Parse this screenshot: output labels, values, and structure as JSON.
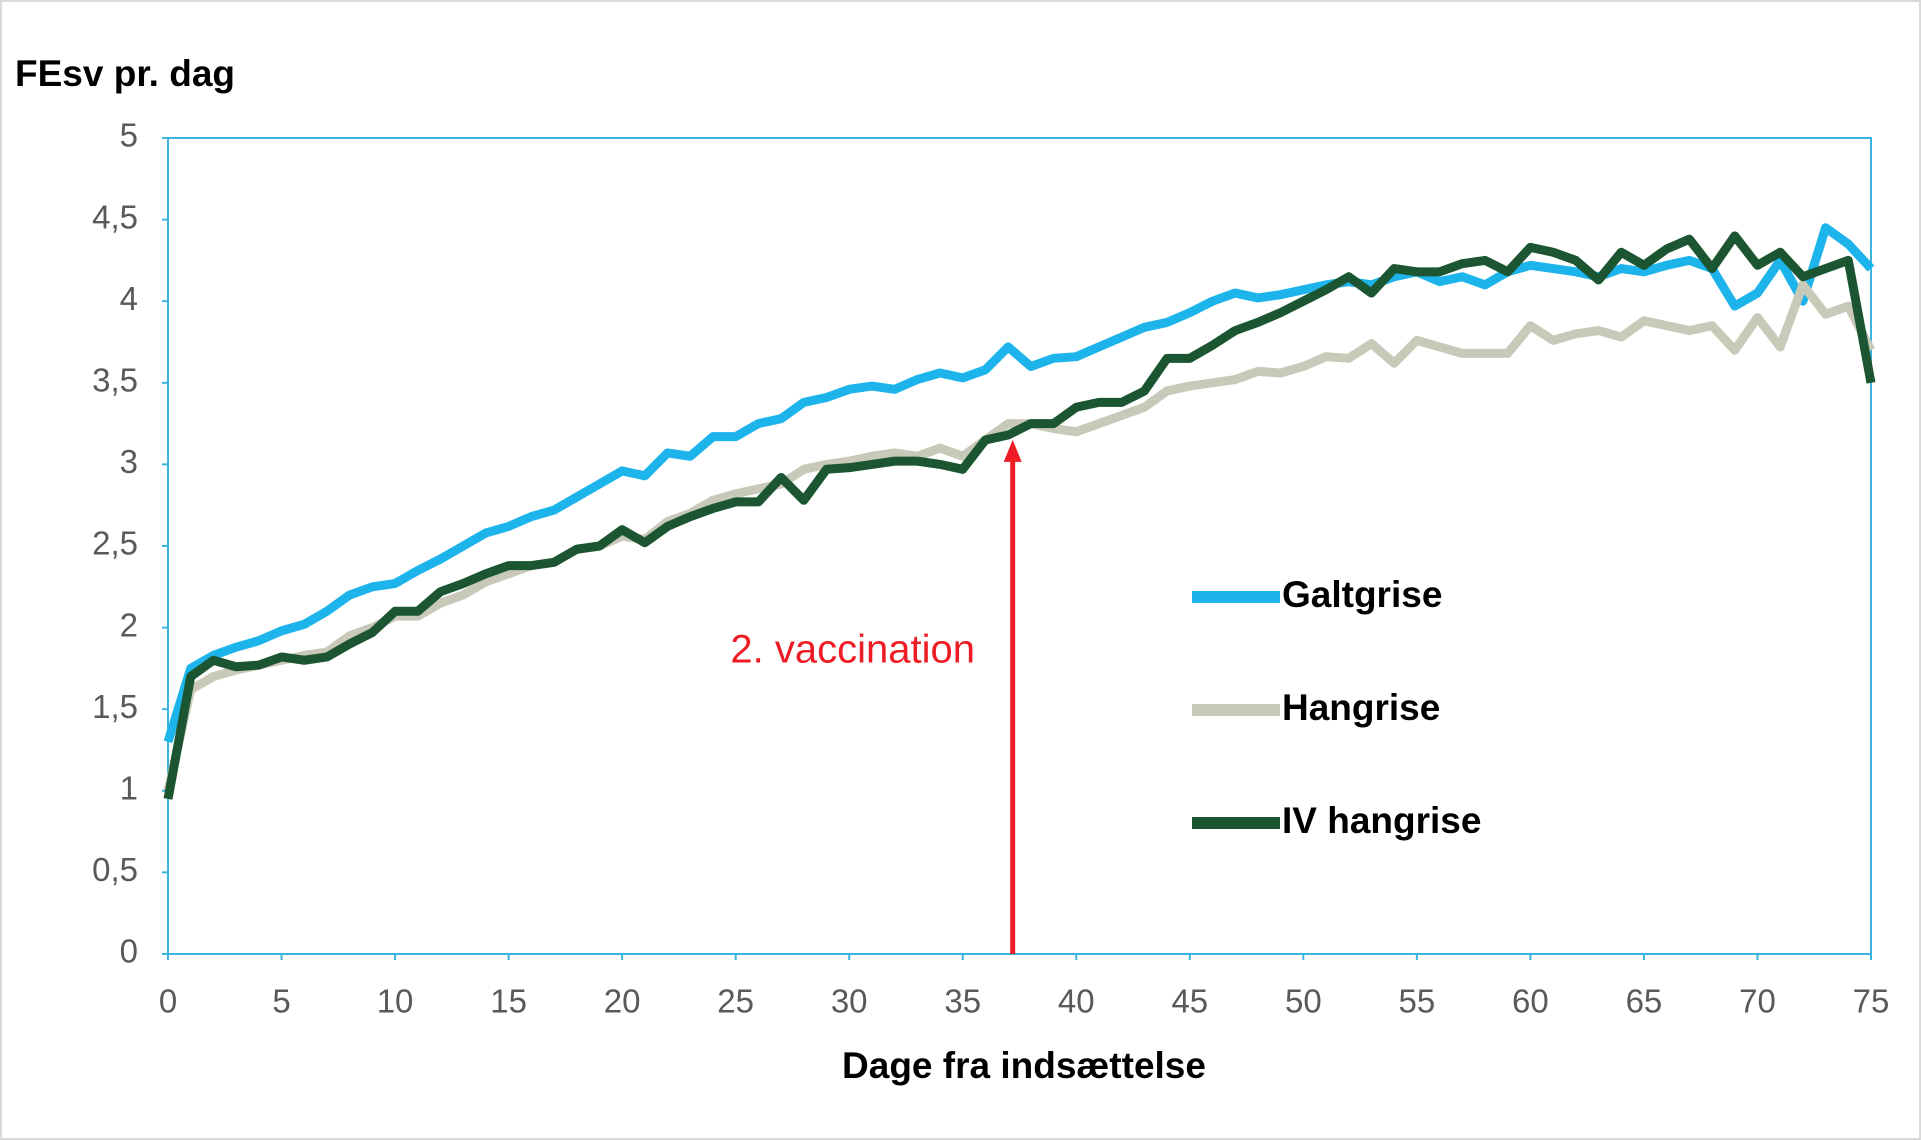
{
  "chart_data": {
    "type": "line",
    "y_label": "FEsv pr. dag",
    "x_label": "Dage fra indsættelse",
    "x": [
      0,
      1,
      2,
      3,
      4,
      5,
      6,
      7,
      8,
      9,
      10,
      11,
      12,
      13,
      14,
      15,
      16,
      17,
      18,
      19,
      20,
      21,
      22,
      23,
      24,
      25,
      26,
      27,
      28,
      29,
      30,
      31,
      32,
      33,
      34,
      35,
      36,
      37,
      38,
      39,
      40,
      41,
      42,
      43,
      44,
      45,
      46,
      47,
      48,
      49,
      50,
      51,
      52,
      53,
      54,
      55,
      56,
      57,
      58,
      59,
      60,
      61,
      62,
      63,
      64,
      65,
      66,
      67,
      68,
      69,
      70,
      71,
      72,
      73,
      74,
      75
    ],
    "series": [
      {
        "name": "Galtgrise",
        "color": "#1db4ec",
        "values": [
          1.3,
          1.75,
          1.83,
          1.88,
          1.92,
          1.98,
          2.02,
          2.1,
          2.2,
          2.25,
          2.27,
          2.35,
          2.42,
          2.5,
          2.58,
          2.62,
          2.68,
          2.72,
          2.8,
          2.88,
          2.96,
          2.93,
          3.07,
          3.05,
          3.17,
          3.17,
          3.25,
          3.28,
          3.38,
          3.41,
          3.46,
          3.48,
          3.46,
          3.52,
          3.56,
          3.53,
          3.58,
          3.72,
          3.6,
          3.65,
          3.66,
          3.72,
          3.78,
          3.84,
          3.87,
          3.93,
          4.0,
          4.05,
          4.02,
          4.04,
          4.07,
          4.1,
          4.12,
          4.1,
          4.15,
          4.18,
          4.12,
          4.15,
          4.1,
          4.18,
          4.22,
          4.2,
          4.18,
          4.15,
          4.2,
          4.18,
          4.22,
          4.25,
          4.2,
          3.97,
          4.05,
          4.25,
          4.0,
          4.45,
          4.35,
          4.2
        ]
      },
      {
        "name": "Hangrise",
        "color": "#c9c9b9",
        "values": [
          1.0,
          1.62,
          1.7,
          1.74,
          1.77,
          1.8,
          1.83,
          1.85,
          1.95,
          2.0,
          2.07,
          2.07,
          2.15,
          2.2,
          2.28,
          2.33,
          2.38,
          2.4,
          2.48,
          2.5,
          2.56,
          2.54,
          2.65,
          2.7,
          2.78,
          2.82,
          2.85,
          2.88,
          2.97,
          3.0,
          3.02,
          3.05,
          3.07,
          3.05,
          3.1,
          3.05,
          3.15,
          3.25,
          3.25,
          3.22,
          3.2,
          3.25,
          3.3,
          3.35,
          3.45,
          3.48,
          3.5,
          3.52,
          3.57,
          3.56,
          3.6,
          3.66,
          3.65,
          3.74,
          3.62,
          3.76,
          3.72,
          3.68,
          3.68,
          3.68,
          3.85,
          3.76,
          3.8,
          3.82,
          3.78,
          3.88,
          3.85,
          3.82,
          3.85,
          3.7,
          3.9,
          3.72,
          4.1,
          3.92,
          3.97,
          3.7
        ]
      },
      {
        "name": "IV hangrise",
        "color": "#1b5531",
        "values": [
          0.95,
          1.7,
          1.8,
          1.76,
          1.77,
          1.82,
          1.8,
          1.82,
          1.9,
          1.97,
          2.1,
          2.1,
          2.22,
          2.27,
          2.33,
          2.38,
          2.38,
          2.4,
          2.48,
          2.5,
          2.6,
          2.52,
          2.62,
          2.68,
          2.73,
          2.77,
          2.77,
          2.92,
          2.78,
          2.97,
          2.98,
          3.0,
          3.02,
          3.02,
          3.0,
          2.97,
          3.15,
          3.18,
          3.25,
          3.25,
          3.35,
          3.38,
          3.38,
          3.45,
          3.65,
          3.65,
          3.73,
          3.82,
          3.87,
          3.93,
          4.0,
          4.07,
          4.15,
          4.05,
          4.2,
          4.18,
          4.18,
          4.23,
          4.25,
          4.18,
          4.33,
          4.3,
          4.25,
          4.13,
          4.3,
          4.22,
          4.32,
          4.38,
          4.2,
          4.4,
          4.22,
          4.3,
          4.15,
          4.2,
          4.25,
          3.5
        ]
      }
    ],
    "xlim": [
      0,
      75
    ],
    "xticks": [
      0,
      5,
      10,
      15,
      20,
      25,
      30,
      35,
      40,
      45,
      50,
      55,
      60,
      65,
      70,
      75
    ],
    "ylim": [
      0,
      5
    ],
    "yticks": [
      0,
      {
        "value": 0.5,
        "label": "0,5"
      },
      1,
      {
        "value": 1.5,
        "label": "1,5"
      },
      2,
      {
        "value": 2.5,
        "label": "2,5"
      },
      3,
      {
        "value": 3.5,
        "label": "3,5"
      },
      4,
      {
        "value": 4.5,
        "label": "4,5"
      },
      5
    ],
    "annotation": {
      "text": "2. vaccination",
      "x": 37.2,
      "y": 3.15,
      "color": "#ee1c24"
    },
    "legend": "center right"
  }
}
